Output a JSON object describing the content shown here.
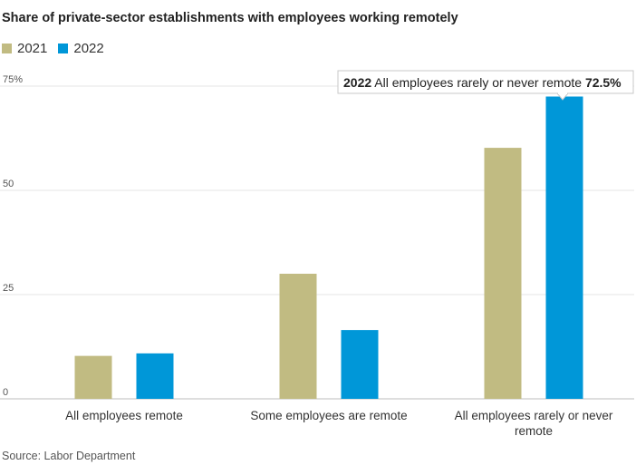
{
  "title": "Share of private-sector establishments with employees working remotely",
  "legend": [
    {
      "label": "2021",
      "color": "#c1bb82"
    },
    {
      "label": "2022",
      "color": "#0097d8"
    }
  ],
  "source": "Source: Labor Department",
  "tooltip": {
    "year": "2022",
    "category": "All employees rarely or never remote",
    "value": "72.5%"
  },
  "chart_data": {
    "type": "bar",
    "categories": [
      [
        "All employees remote"
      ],
      [
        "Some employees are remote"
      ],
      [
        "All employees rarely or never",
        "remote"
      ]
    ],
    "series": [
      {
        "name": "2021",
        "values": [
          10.3,
          30.0,
          60.2
        ],
        "color": "#c1bb82"
      },
      {
        "name": "2022",
        "values": [
          10.9,
          16.5,
          72.5
        ],
        "color": "#0097d8"
      }
    ],
    "ylim": [
      0,
      75
    ],
    "yticks": [
      0,
      25,
      50,
      75
    ],
    "ytick_labels": [
      "0",
      "25",
      "50",
      "75%"
    ],
    "grid": true,
    "legend_position": "top-left"
  }
}
